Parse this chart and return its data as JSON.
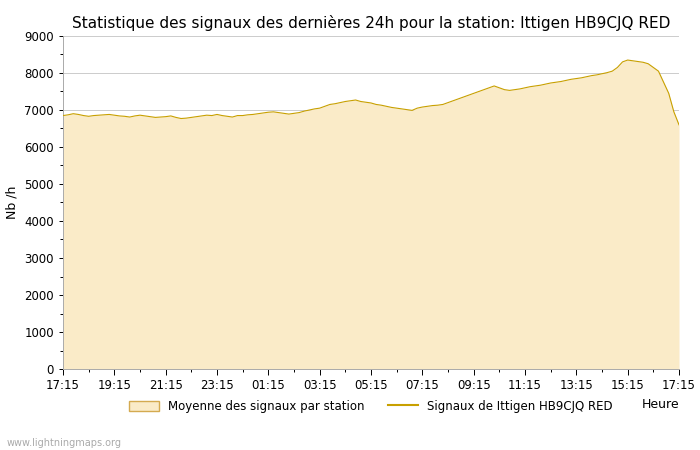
{
  "title": "Statistique des signaux des dernières 24h pour la station: Ittigen HB9CJQ RED",
  "xlabel": "Heure",
  "ylabel": "Nb /h",
  "ylim": [
    0,
    9000
  ],
  "yticks": [
    0,
    1000,
    2000,
    3000,
    4000,
    5000,
    6000,
    7000,
    8000,
    9000
  ],
  "xtick_labels": [
    "17:15",
    "19:15",
    "21:15",
    "23:15",
    "01:15",
    "03:15",
    "05:15",
    "07:15",
    "09:15",
    "11:15",
    "13:15",
    "15:15",
    "17:15"
  ],
  "fill_color": "#FAEBC8",
  "fill_edge_color": "#D4AA50",
  "line_color": "#C8A000",
  "background_color": "#ffffff",
  "plot_bg_color": "#ffffff",
  "grid_color": "#cccccc",
  "title_fontsize": 11,
  "label_fontsize": 9,
  "tick_fontsize": 8.5,
  "watermark": "www.lightningmaps.org",
  "legend_fill_label": "Moyenne des signaux par station",
  "legend_line_label": "Signaux de Ittigen HB9CJQ RED",
  "x_values": [
    0,
    1,
    2,
    3,
    4,
    5,
    6,
    7,
    8,
    9,
    10,
    11,
    12,
    13,
    14,
    15,
    16,
    17,
    18,
    19,
    20,
    21,
    22,
    23,
    24,
    25,
    26,
    27,
    28,
    29,
    30,
    31,
    32,
    33,
    34,
    35,
    36,
    37,
    38,
    39,
    40,
    41,
    42,
    43,
    44,
    45,
    46,
    47,
    48,
    49,
    50,
    51,
    52,
    53,
    54,
    55,
    56,
    57,
    58,
    59,
    60,
    61,
    62,
    63,
    64,
    65,
    66,
    67,
    68,
    69,
    70,
    71,
    72,
    73,
    74,
    75,
    76,
    77,
    78,
    79,
    80,
    81,
    82,
    83,
    84,
    85,
    86,
    87,
    88,
    89,
    90,
    91,
    92,
    93,
    94,
    95,
    96,
    97,
    98,
    99,
    100,
    101,
    102,
    103,
    104,
    105,
    106,
    107,
    108,
    109,
    110,
    111,
    112,
    113,
    114,
    115,
    116,
    117,
    118,
    119,
    120
  ],
  "y_fill": [
    6850,
    6870,
    6900,
    6880,
    6850,
    6830,
    6850,
    6860,
    6870,
    6880,
    6860,
    6840,
    6830,
    6810,
    6840,
    6860,
    6840,
    6820,
    6800,
    6810,
    6820,
    6840,
    6800,
    6770,
    6780,
    6800,
    6820,
    6840,
    6860,
    6850,
    6880,
    6850,
    6830,
    6810,
    6850,
    6850,
    6870,
    6880,
    6900,
    6920,
    6940,
    6950,
    6930,
    6910,
    6890,
    6910,
    6930,
    6970,
    7000,
    7030,
    7050,
    7100,
    7150,
    7170,
    7200,
    7230,
    7250,
    7270,
    7230,
    7210,
    7190,
    7150,
    7130,
    7100,
    7070,
    7050,
    7030,
    7010,
    6990,
    7050,
    7080,
    7100,
    7120,
    7130,
    7150,
    7200,
    7250,
    7300,
    7350,
    7400,
    7450,
    7500,
    7550,
    7600,
    7650,
    7600,
    7550,
    7530,
    7550,
    7570,
    7600,
    7630,
    7650,
    7670,
    7700,
    7730,
    7750,
    7770,
    7800,
    7830,
    7850,
    7870,
    7900,
    7930,
    7950,
    7980,
    8010,
    8050,
    8150,
    8300,
    8350,
    8330,
    8310,
    8290,
    8250,
    8150,
    8050,
    7750,
    7450,
    6950,
    6600
  ],
  "y_line": [
    6850,
    6870,
    6900,
    6880,
    6850,
    6830,
    6850,
    6860,
    6870,
    6880,
    6860,
    6840,
    6830,
    6810,
    6840,
    6860,
    6840,
    6820,
    6800,
    6810,
    6820,
    6840,
    6800,
    6770,
    6780,
    6800,
    6820,
    6840,
    6860,
    6850,
    6880,
    6850,
    6830,
    6810,
    6850,
    6850,
    6870,
    6880,
    6900,
    6920,
    6940,
    6950,
    6930,
    6910,
    6890,
    6910,
    6930,
    6970,
    7000,
    7030,
    7050,
    7100,
    7150,
    7170,
    7200,
    7230,
    7250,
    7270,
    7230,
    7210,
    7190,
    7150,
    7130,
    7100,
    7070,
    7050,
    7030,
    7010,
    6990,
    7050,
    7080,
    7100,
    7120,
    7130,
    7150,
    7200,
    7250,
    7300,
    7350,
    7400,
    7450,
    7500,
    7550,
    7600,
    7650,
    7600,
    7550,
    7530,
    7550,
    7570,
    7600,
    7630,
    7650,
    7670,
    7700,
    7730,
    7750,
    7770,
    7800,
    7830,
    7850,
    7870,
    7900,
    7930,
    7950,
    7980,
    8010,
    8050,
    8150,
    8300,
    8350,
    8330,
    8310,
    8290,
    8250,
    8150,
    8050,
    7750,
    7450,
    6950,
    6600
  ]
}
